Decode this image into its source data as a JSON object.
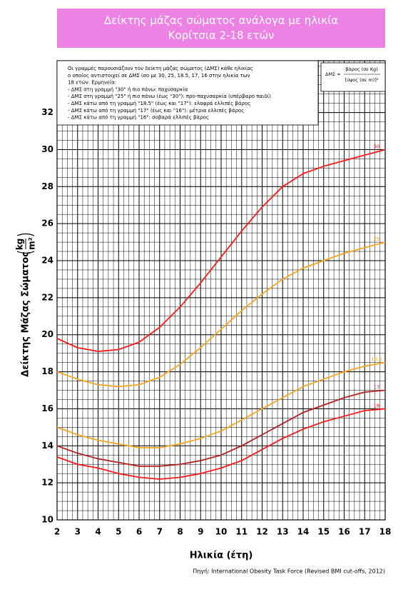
{
  "chart_data": {
    "type": "line",
    "title": "Δείκτης μάζας σώματος ανάλογα με ηλικία",
    "subtitle": "Κορίτσια 2-18 ετών",
    "x_label": "Ηλικία (έτη)",
    "y_label": {
      "text": "Δείκτης Μάζας Σώματος",
      "unit_numerator": "kg",
      "unit_denominator": "m²"
    },
    "source": "Πηγή: International Obesity Task Force (Revised BMI cut-offs, 2012)",
    "info": [
      "Οι γραμμές παρουσιάζουν τον δείκτη μάζας σώματος (ΔΜΣ) κάθε ηλικίας",
      "ο οποίος αντιστοιχεί σε ΔΜΣ ίσο με 30, 25, 18.5, 17, 16 στην ηλικία των",
      "18 ετών. Ερμηνεία:",
      "- ΔΜΣ στη γραμμή \"30\" ή πιο πάνω: παχυσαρκία",
      "- ΔΜΣ στη γραμμή \"25\" ή πιο πάνω (έως \"30\"): προ-παχυσαρκία (υπέρβαρο παιδί)",
      "- ΔΜΣ κάτω από τη γραμμή \"18.5\" (έως και \"17\"): ελαφρά ελλιπές βάρος",
      "- ΔΜΣ κάτω από τη γραμμή \"17\" (έως και \"16\"): μέτρια ελλιπές βάρος",
      "- ΔΜΣ κάτω από τη γραμμή \"16\": σοβαρά ελλιπές βάρος"
    ],
    "formula": {
      "lhs": "ΔΜΣ =",
      "numerator": "βάρος (σε Kg)",
      "denominator": "[ύψος (σε m)]²"
    },
    "x": [
      2,
      3,
      4,
      5,
      6,
      7,
      8,
      9,
      10,
      11,
      12,
      13,
      14,
      15,
      16,
      17,
      18
    ],
    "series": [
      {
        "name": "30",
        "color": "#ff1a1a",
        "values": [
          19.8,
          19.3,
          19.1,
          19.2,
          19.6,
          20.4,
          21.5,
          22.8,
          24.2,
          25.6,
          26.9,
          28.0,
          28.7,
          29.1,
          29.4,
          29.7,
          30.0
        ]
      },
      {
        "name": "25",
        "color": "#f5a623",
        "values": [
          18.0,
          17.6,
          17.3,
          17.2,
          17.3,
          17.7,
          18.4,
          19.3,
          20.3,
          21.3,
          22.2,
          23.0,
          23.6,
          24.0,
          24.4,
          24.7,
          25.0
        ]
      },
      {
        "name": "18.5",
        "color": "#f5a623",
        "values": [
          15.0,
          14.6,
          14.3,
          14.1,
          13.9,
          13.9,
          14.1,
          14.4,
          14.8,
          15.4,
          16.0,
          16.6,
          17.2,
          17.6,
          18.0,
          18.3,
          18.5
        ]
      },
      {
        "name": "17",
        "color": "#b22222",
        "values": [
          14.0,
          13.6,
          13.3,
          13.1,
          12.9,
          12.9,
          13.0,
          13.2,
          13.5,
          14.0,
          14.6,
          15.2,
          15.8,
          16.2,
          16.6,
          16.9,
          17.0
        ]
      },
      {
        "name": "16",
        "color": "#ff1a1a",
        "values": [
          13.4,
          13.0,
          12.8,
          12.5,
          12.3,
          12.2,
          12.3,
          12.5,
          12.8,
          13.2,
          13.8,
          14.4,
          14.9,
          15.3,
          15.6,
          15.9,
          16.0
        ]
      }
    ],
    "xlim": [
      2,
      18
    ],
    "ylim": [
      10,
      34.8
    ],
    "xticks": [
      2,
      3,
      4,
      5,
      6,
      7,
      8,
      9,
      10,
      11,
      12,
      13,
      14,
      15,
      16,
      17,
      18
    ],
    "yticks": [
      10,
      12,
      14,
      16,
      18,
      20,
      22,
      24,
      26,
      28,
      30,
      32
    ],
    "minor_grid": {
      "x": 0.25,
      "y": 0.5
    },
    "grid": true
  }
}
